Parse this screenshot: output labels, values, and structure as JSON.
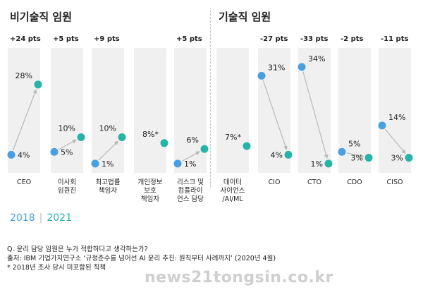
{
  "groups": {
    "non_tech": "비기술직 임원",
    "tech": "기술직 임원"
  },
  "legend": {
    "year1": "2018",
    "separator": "|",
    "year2": "2021"
  },
  "notes": {
    "question": "Q. 윤리 담당 임원은 누가 적합하다고 생각하는가?",
    "source": "출처: IBM 기업가치연구소 ‘규정준수를 넘어선 AI 윤리 추진: 원칙부터 사례까지’ (2020년 4월)",
    "footnote": "* 2018년 조사 당시 미포함된 직책"
  },
  "watermark": "news21tongsin.co.kr",
  "chart_data": {
    "type": "slope",
    "series": [
      {
        "name": "2018",
        "color": "#4a9fe0"
      },
      {
        "name": "2021",
        "color": "#27b3a6"
      }
    ],
    "ylim": [
      0,
      40
    ],
    "items": [
      {
        "label": [
          "CEO"
        ],
        "change": "+24 pts",
        "v2018": 4,
        "v2021": 28,
        "t2018": "4%",
        "t2021": "28%"
      },
      {
        "label": [
          "이사회",
          "임원진"
        ],
        "change": "+5 pts",
        "v2018": 5,
        "v2021": 10,
        "t2018": "5%",
        "t2021": "10%"
      },
      {
        "label": [
          "최고법률",
          "책임자"
        ],
        "change": "+9 pts",
        "v2018": 1,
        "v2021": 10,
        "t2018": "1%",
        "t2021": "10%"
      },
      {
        "label": [
          "개인정보",
          "보호",
          "책임자"
        ],
        "change": "",
        "v2018": null,
        "v2021": 8,
        "t2018": "",
        "t2021": "8%*"
      },
      {
        "label": [
          "리스크 및",
          "컴플라이",
          "언스 담당"
        ],
        "change": "+5 pts",
        "v2018": 1,
        "v2021": 6,
        "t2018": "1%",
        "t2021": "6%"
      },
      {
        "label": [
          "데이터",
          "사이언스",
          "/AI/ML"
        ],
        "change": "",
        "v2018": null,
        "v2021": 7,
        "t2018": "",
        "t2021": "7%*"
      },
      {
        "label": [
          "CIO"
        ],
        "change": "-27 pts",
        "v2018": 31,
        "v2021": 4,
        "t2018": "31%",
        "t2021": "4%"
      },
      {
        "label": [
          "CTO"
        ],
        "change": "-33 pts",
        "v2018": 34,
        "v2021": 1,
        "t2018": "34%",
        "t2021": "1%"
      },
      {
        "label": [
          "CDO"
        ],
        "change": "-2 pts",
        "v2018": 5,
        "v2021": 3,
        "t2018": "5%",
        "t2021": "3%"
      },
      {
        "label": [
          "CISO"
        ],
        "change": "-11 pts",
        "v2018": 14,
        "v2021": 3,
        "t2018": "14%",
        "t2021": "3%"
      }
    ]
  }
}
